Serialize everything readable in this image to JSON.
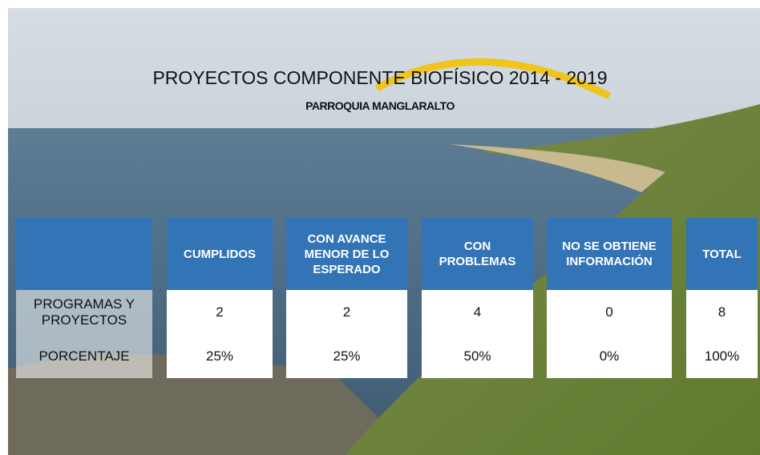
{
  "header": {
    "title": "PROYECTOS COMPONENTE BIOFÍSICO 2014 - 2019",
    "subtitle": "PARROQUIA MANGLARALTO"
  },
  "table": {
    "columns": [
      "CUMPLIDOS",
      "CON AVANCE MENOR DE LO ESPERADO",
      "CON PROBLEMAS",
      "NO SE OBTIENE INFORMACIÓN",
      "TOTAL"
    ],
    "rows": [
      [
        "PROGRAMAS Y PROYECTOS",
        "2",
        "2",
        "4",
        "0",
        "8"
      ],
      [
        "PORCENTAJE",
        "25%",
        "25%",
        "50%",
        "0%",
        "100%"
      ]
    ]
  }
}
